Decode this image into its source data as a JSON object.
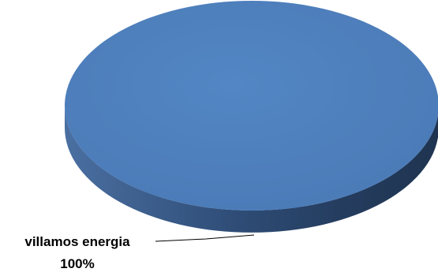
{
  "chart_data": {
    "type": "pie",
    "style": "3d",
    "categories": [
      "villamos energia"
    ],
    "values": [
      100
    ],
    "data_labels": [
      {
        "category": "villamos energia",
        "percent": "100%"
      }
    ],
    "colors": {
      "top": "#4f81bd",
      "side_dark": "#1f3450",
      "side_mid": "#2d4a72",
      "side_light": "#4a6fa1"
    },
    "legend": "none",
    "grid": false
  }
}
